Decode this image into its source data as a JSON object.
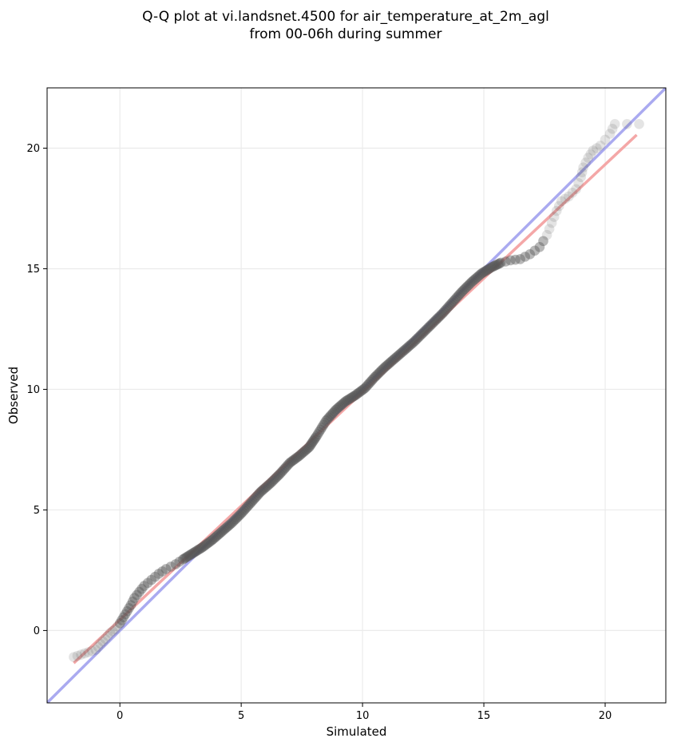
{
  "chart_data": {
    "type": "scatter",
    "title_lines": [
      "Q-Q plot at vi.landsnet.4500 for air_temperature_at_2m_agl",
      "from 00-06h during summer"
    ],
    "xlabel": "Simulated",
    "ylabel": "Observed",
    "xlim": [
      -3,
      22.5
    ],
    "ylim": [
      -3,
      22.5
    ],
    "x_ticks": [
      0,
      5,
      10,
      15,
      20
    ],
    "y_ticks": [
      0,
      5,
      10,
      15,
      20
    ],
    "grid": true,
    "point_color": "#555555",
    "points": [
      [
        -1.9,
        -1.1
      ],
      [
        -1.6,
        -1.0
      ],
      [
        -1.3,
        -0.9
      ],
      [
        -1.0,
        -0.8
      ],
      [
        -0.8,
        -0.55
      ],
      [
        -0.6,
        -0.35
      ],
      [
        -0.4,
        -0.1
      ],
      [
        -0.2,
        0.05
      ],
      [
        0.0,
        0.3
      ],
      [
        0.15,
        0.55
      ],
      [
        0.3,
        0.8
      ],
      [
        0.45,
        1.05
      ],
      [
        0.6,
        1.35
      ],
      [
        0.8,
        1.6
      ],
      [
        1.0,
        1.85
      ],
      [
        1.3,
        2.1
      ],
      [
        1.6,
        2.35
      ],
      [
        1.9,
        2.55
      ],
      [
        2.3,
        2.75
      ],
      [
        2.6,
        2.95
      ],
      [
        3.0,
        3.2
      ],
      [
        3.4,
        3.45
      ],
      [
        3.8,
        3.75
      ],
      [
        4.2,
        4.1
      ],
      [
        4.6,
        4.45
      ],
      [
        5.0,
        4.85
      ],
      [
        5.4,
        5.3
      ],
      [
        5.8,
        5.75
      ],
      [
        6.2,
        6.1
      ],
      [
        6.6,
        6.5
      ],
      [
        7.0,
        6.95
      ],
      [
        7.4,
        7.25
      ],
      [
        7.8,
        7.6
      ],
      [
        8.1,
        8.05
      ],
      [
        8.5,
        8.7
      ],
      [
        8.9,
        9.15
      ],
      [
        9.3,
        9.5
      ],
      [
        9.7,
        9.75
      ],
      [
        10.1,
        10.05
      ],
      [
        10.5,
        10.5
      ],
      [
        10.9,
        10.9
      ],
      [
        11.3,
        11.25
      ],
      [
        11.7,
        11.6
      ],
      [
        12.1,
        11.95
      ],
      [
        12.5,
        12.35
      ],
      [
        12.9,
        12.75
      ],
      [
        13.3,
        13.15
      ],
      [
        13.7,
        13.6
      ],
      [
        14.1,
        14.05
      ],
      [
        14.5,
        14.45
      ],
      [
        14.9,
        14.8
      ],
      [
        15.3,
        15.05
      ],
      [
        15.7,
        15.25
      ],
      [
        16.1,
        15.35
      ],
      [
        16.5,
        15.4
      ],
      [
        16.9,
        15.6
      ],
      [
        17.3,
        15.9
      ],
      [
        17.6,
        16.4
      ],
      [
        17.8,
        16.9
      ],
      [
        18.0,
        17.4
      ],
      [
        18.2,
        17.8
      ],
      [
        18.5,
        18.0
      ],
      [
        18.8,
        18.3
      ],
      [
        19.0,
        18.8
      ],
      [
        19.1,
        19.2
      ],
      [
        19.3,
        19.6
      ],
      [
        19.5,
        19.9
      ],
      [
        19.8,
        20.1
      ],
      [
        20.2,
        20.6
      ],
      [
        20.4,
        21.0
      ],
      [
        21.4,
        21.0
      ]
    ],
    "identity_line": {
      "color": "#aaaaf0"
    },
    "fit_line": {
      "x": [
        -1.9,
        21.3
      ],
      "y": [
        -1.35,
        20.55
      ],
      "color": "#f4a7a7"
    }
  }
}
